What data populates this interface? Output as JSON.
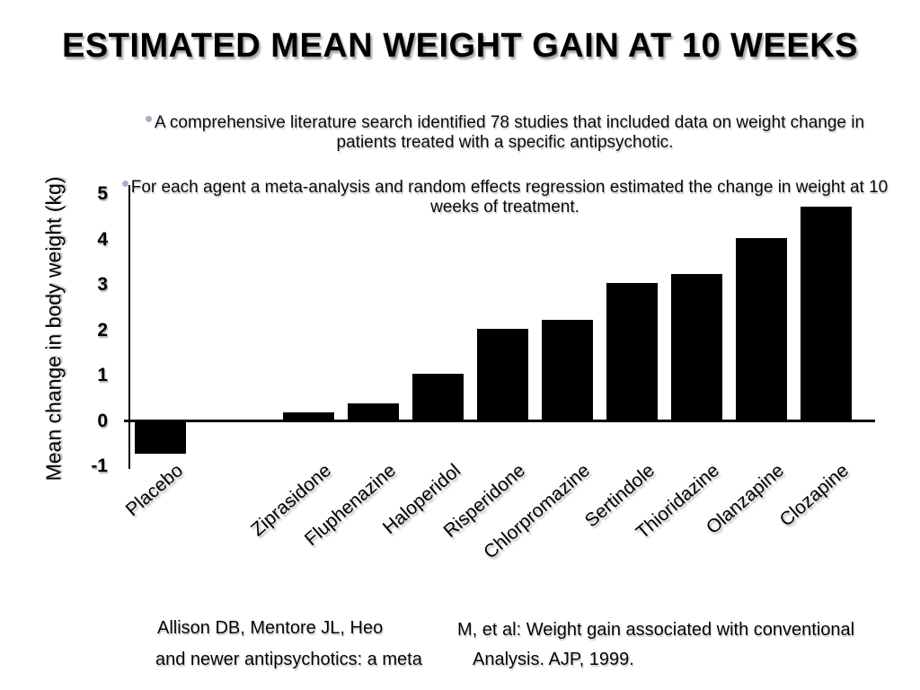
{
  "slide": {
    "title": "ESTIMATED MEAN WEIGHT GAIN AT 10 WEEKS",
    "bullets": [
      "A comprehensive literature search identified 78 studies that included data on weight change in patients treated with a specific antipsychotic.",
      "For each agent a meta-analysis and random effects regression estimated the change in weight at 10 weeks of treatment."
    ],
    "citation": {
      "line1_left": "Allison DB,  Mentore JL,  Heo",
      "line1_right": "M, et al: Weight gain associated with conventional",
      "line2_left": "and newer antipsychotics: a meta",
      "line2_right": "Analysis. AJP, 1999."
    }
  },
  "chart_data": {
    "type": "bar",
    "categories": [
      "Placebo",
      "Ziprasidone",
      "Fluphenazine",
      "Haloperidol",
      "Risperidone",
      "Chlorpromazine",
      "Sertindole",
      "Thioridazine",
      "Olanzapine",
      "Clozapine"
    ],
    "values": [
      -0.7,
      0.15,
      0.35,
      1.0,
      2.0,
      2.2,
      3.0,
      3.2,
      4.0,
      4.7
    ],
    "title": "",
    "xlabel": "",
    "ylabel": "Mean change in body weight (kg)",
    "yticks": [
      5,
      4,
      3,
      2,
      1,
      0,
      -1
    ],
    "ylim": [
      -1,
      5
    ],
    "bar_color": "#000000",
    "axis_color": "#000000",
    "grid": false,
    "legend": false
  },
  "colors": {
    "background": "#ffffff",
    "text": "#000000",
    "bullet_dot": "#a9aec8",
    "shadow": "#8c8c8c"
  }
}
